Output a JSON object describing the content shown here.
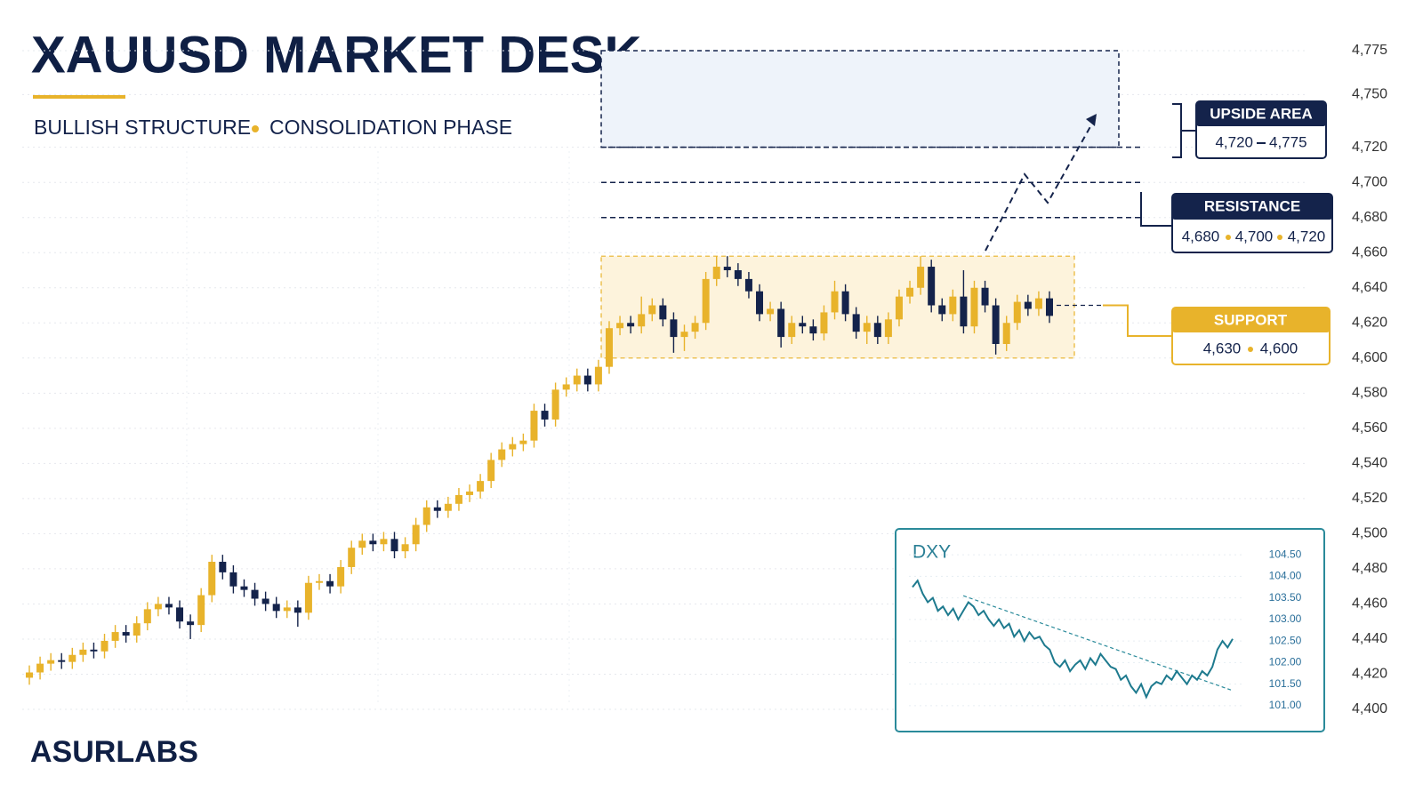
{
  "header": {
    "title": "XAUUSD MARKET DESK",
    "subtitle": [
      "BULLISH STRUCTURE",
      "CONSOLIDATION PHASE"
    ]
  },
  "brand": "ASURLABS",
  "chart_data": [
    {
      "type": "candlestick",
      "up_color": "#E8B32B",
      "down_color": "#14234B",
      "grid": true,
      "ylim": [
        4400,
        4775
      ],
      "yticks": [
        {
          "value": 4400,
          "label": "4,400"
        },
        {
          "value": 4420,
          "label": "4,420"
        },
        {
          "value": 4440,
          "label": "4,440"
        },
        {
          "value": 4460,
          "label": "4,460"
        },
        {
          "value": 4480,
          "label": "4,480"
        },
        {
          "value": 4500,
          "label": "4,500"
        },
        {
          "value": 4520,
          "label": "4,520"
        },
        {
          "value": 4540,
          "label": "4,540"
        },
        {
          "value": 4560,
          "label": "4,560"
        },
        {
          "value": 4580,
          "label": "4,580"
        },
        {
          "value": 4600,
          "label": "4,600"
        },
        {
          "value": 4620,
          "label": "4,620"
        },
        {
          "value": 4640,
          "label": "4,640"
        },
        {
          "value": 4660,
          "label": "4,660"
        },
        {
          "value": 4680,
          "label": "4,680"
        },
        {
          "value": 4700,
          "label": "4,700"
        },
        {
          "value": 4720,
          "label": "4,720"
        },
        {
          "value": 4750,
          "label": "4,750"
        },
        {
          "value": 4775,
          "label": "4,775"
        }
      ],
      "open": [
        4418,
        4421,
        4426,
        4428,
        4427,
        4431,
        4434,
        4433,
        4439,
        4444,
        4442,
        4449,
        4457,
        4460,
        4458,
        4450,
        4448,
        4465,
        4484,
        4478,
        4470,
        4468,
        4463,
        4460,
        4456,
        4458,
        4455,
        4472,
        4473,
        4470,
        4481,
        4492,
        4496,
        4494,
        4497,
        4490,
        4494,
        4505,
        4515,
        4513,
        4517,
        4522,
        4524,
        4530,
        4542,
        4548,
        4551,
        4553,
        4570,
        4565,
        4582,
        4585,
        4590,
        4585,
        4595,
        4617,
        4620,
        4618,
        4625,
        4630,
        4622,
        4612,
        4615,
        4620,
        4645,
        4652,
        4650,
        4645,
        4638,
        4625,
        4628,
        4612,
        4620,
        4618,
        4614,
        4626,
        4638,
        4625,
        4615,
        4620,
        4612,
        4622,
        4635,
        4640,
        4652,
        4630,
        4625,
        4635,
        4618,
        4640,
        4630,
        4608,
        4620,
        4632,
        4628,
        4634
      ],
      "high": [
        4425,
        4430,
        4432,
        4432,
        4435,
        4438,
        4438,
        4443,
        4448,
        4448,
        4453,
        4461,
        4464,
        4464,
        4462,
        4454,
        4469,
        4488,
        4488,
        4482,
        4474,
        4472,
        4467,
        4464,
        4462,
        4462,
        4476,
        4477,
        4477,
        4485,
        4496,
        4500,
        4500,
        4501,
        4501,
        4498,
        4509,
        4519,
        4519,
        4521,
        4526,
        4528,
        4534,
        4546,
        4552,
        4555,
        4557,
        4574,
        4574,
        4586,
        4589,
        4594,
        4594,
        4599,
        4621,
        4624,
        4624,
        4635,
        4634,
        4634,
        4626,
        4619,
        4624,
        4649,
        4658,
        4658,
        4654,
        4649,
        4642,
        4632,
        4632,
        4624,
        4624,
        4622,
        4630,
        4644,
        4642,
        4629,
        4624,
        4624,
        4626,
        4639,
        4644,
        4658,
        4656,
        4634,
        4639,
        4650,
        4644,
        4644,
        4634,
        4624,
        4636,
        4636,
        4638,
        4638
      ],
      "low": [
        4414,
        4417,
        4422,
        4423,
        4423,
        4427,
        4429,
        4429,
        4435,
        4438,
        4438,
        4445,
        4453,
        4454,
        4446,
        4440,
        4444,
        4461,
        4474,
        4466,
        4464,
        4459,
        4456,
        4452,
        4452,
        4447,
        4451,
        4468,
        4466,
        4466,
        4477,
        4488,
        4490,
        4490,
        4486,
        4486,
        4490,
        4501,
        4509,
        4509,
        4513,
        4518,
        4520,
        4526,
        4538,
        4544,
        4547,
        4549,
        4561,
        4561,
        4578,
        4581,
        4581,
        4581,
        4591,
        4613,
        4614,
        4614,
        4621,
        4618,
        4603,
        4604,
        4611,
        4616,
        4641,
        4646,
        4641,
        4634,
        4621,
        4621,
        4606,
        4608,
        4614,
        4610,
        4610,
        4622,
        4621,
        4611,
        4608,
        4608,
        4608,
        4618,
        4631,
        4636,
        4626,
        4621,
        4621,
        4614,
        4614,
        4626,
        4602,
        4604,
        4616,
        4624,
        4624,
        4620
      ],
      "close": [
        4421,
        4426,
        4428,
        4427,
        4431,
        4434,
        4433,
        4439,
        4444,
        4442,
        4449,
        4457,
        4460,
        4458,
        4450,
        4448,
        4465,
        4484,
        4478,
        4470,
        4468,
        4463,
        4460,
        4456,
        4458,
        4455,
        4472,
        4473,
        4470,
        4481,
        4492,
        4496,
        4494,
        4497,
        4490,
        4494,
        4505,
        4515,
        4513,
        4517,
        4522,
        4524,
        4530,
        4542,
        4548,
        4551,
        4553,
        4570,
        4565,
        4582,
        4585,
        4590,
        4585,
        4595,
        4617,
        4620,
        4618,
        4625,
        4630,
        4622,
        4612,
        4615,
        4620,
        4645,
        4652,
        4650,
        4645,
        4638,
        4625,
        4628,
        4612,
        4620,
        4618,
        4614,
        4626,
        4638,
        4625,
        4615,
        4620,
        4612,
        4622,
        4635,
        4640,
        4652,
        4630,
        4625,
        4635,
        4618,
        4640,
        4630,
        4608,
        4620,
        4632,
        4628,
        4634,
        4624
      ],
      "zones": {
        "upside": {
          "label": "UPSIDE AREA",
          "values": [
            4720,
            4775
          ],
          "value_labels": [
            "4,720",
            "4,775"
          ]
        },
        "resistance": {
          "label": "RESISTANCE",
          "values": [
            4680,
            4700,
            4720
          ],
          "value_labels": [
            "4,680",
            "4,700",
            "4,720"
          ]
        },
        "support": {
          "label": "SUPPORT",
          "values": [
            4630,
            4600
          ],
          "value_labels": [
            "4,630",
            "4,600"
          ]
        }
      }
    },
    {
      "type": "line",
      "title": "DXY",
      "color": "#1E7A8E",
      "ylim": [
        100.75,
        104.75
      ],
      "yticks": [
        {
          "value": 101,
          "label": "101.00"
        },
        {
          "value": 101.5,
          "label": "101.50"
        },
        {
          "value": 102,
          "label": "102.00"
        },
        {
          "value": 102.5,
          "label": "102.50"
        },
        {
          "value": 103,
          "label": "103.00"
        },
        {
          "value": 103.5,
          "label": "103.50"
        },
        {
          "value": 104,
          "label": "104.00"
        },
        {
          "value": 104.5,
          "label": "104.50"
        }
      ],
      "values": [
        103.75,
        103.9,
        103.6,
        103.4,
        103.5,
        103.2,
        103.3,
        103.1,
        103.25,
        103.0,
        103.2,
        103.4,
        103.3,
        103.1,
        103.2,
        103.0,
        102.85,
        103.0,
        102.8,
        102.9,
        102.6,
        102.75,
        102.5,
        102.7,
        102.55,
        102.6,
        102.4,
        102.3,
        102.0,
        101.9,
        102.05,
        101.8,
        101.95,
        102.05,
        101.85,
        102.1,
        101.95,
        102.2,
        102.05,
        101.9,
        101.85,
        101.6,
        101.7,
        101.45,
        101.3,
        101.5,
        101.2,
        101.45,
        101.55,
        101.5,
        101.7,
        101.6,
        101.8,
        101.65,
        101.5,
        101.7,
        101.6,
        101.8,
        101.7,
        101.9,
        102.3,
        102.5,
        102.35,
        102.55
      ],
      "trend": [
        103.55,
        101.35
      ]
    }
  ]
}
